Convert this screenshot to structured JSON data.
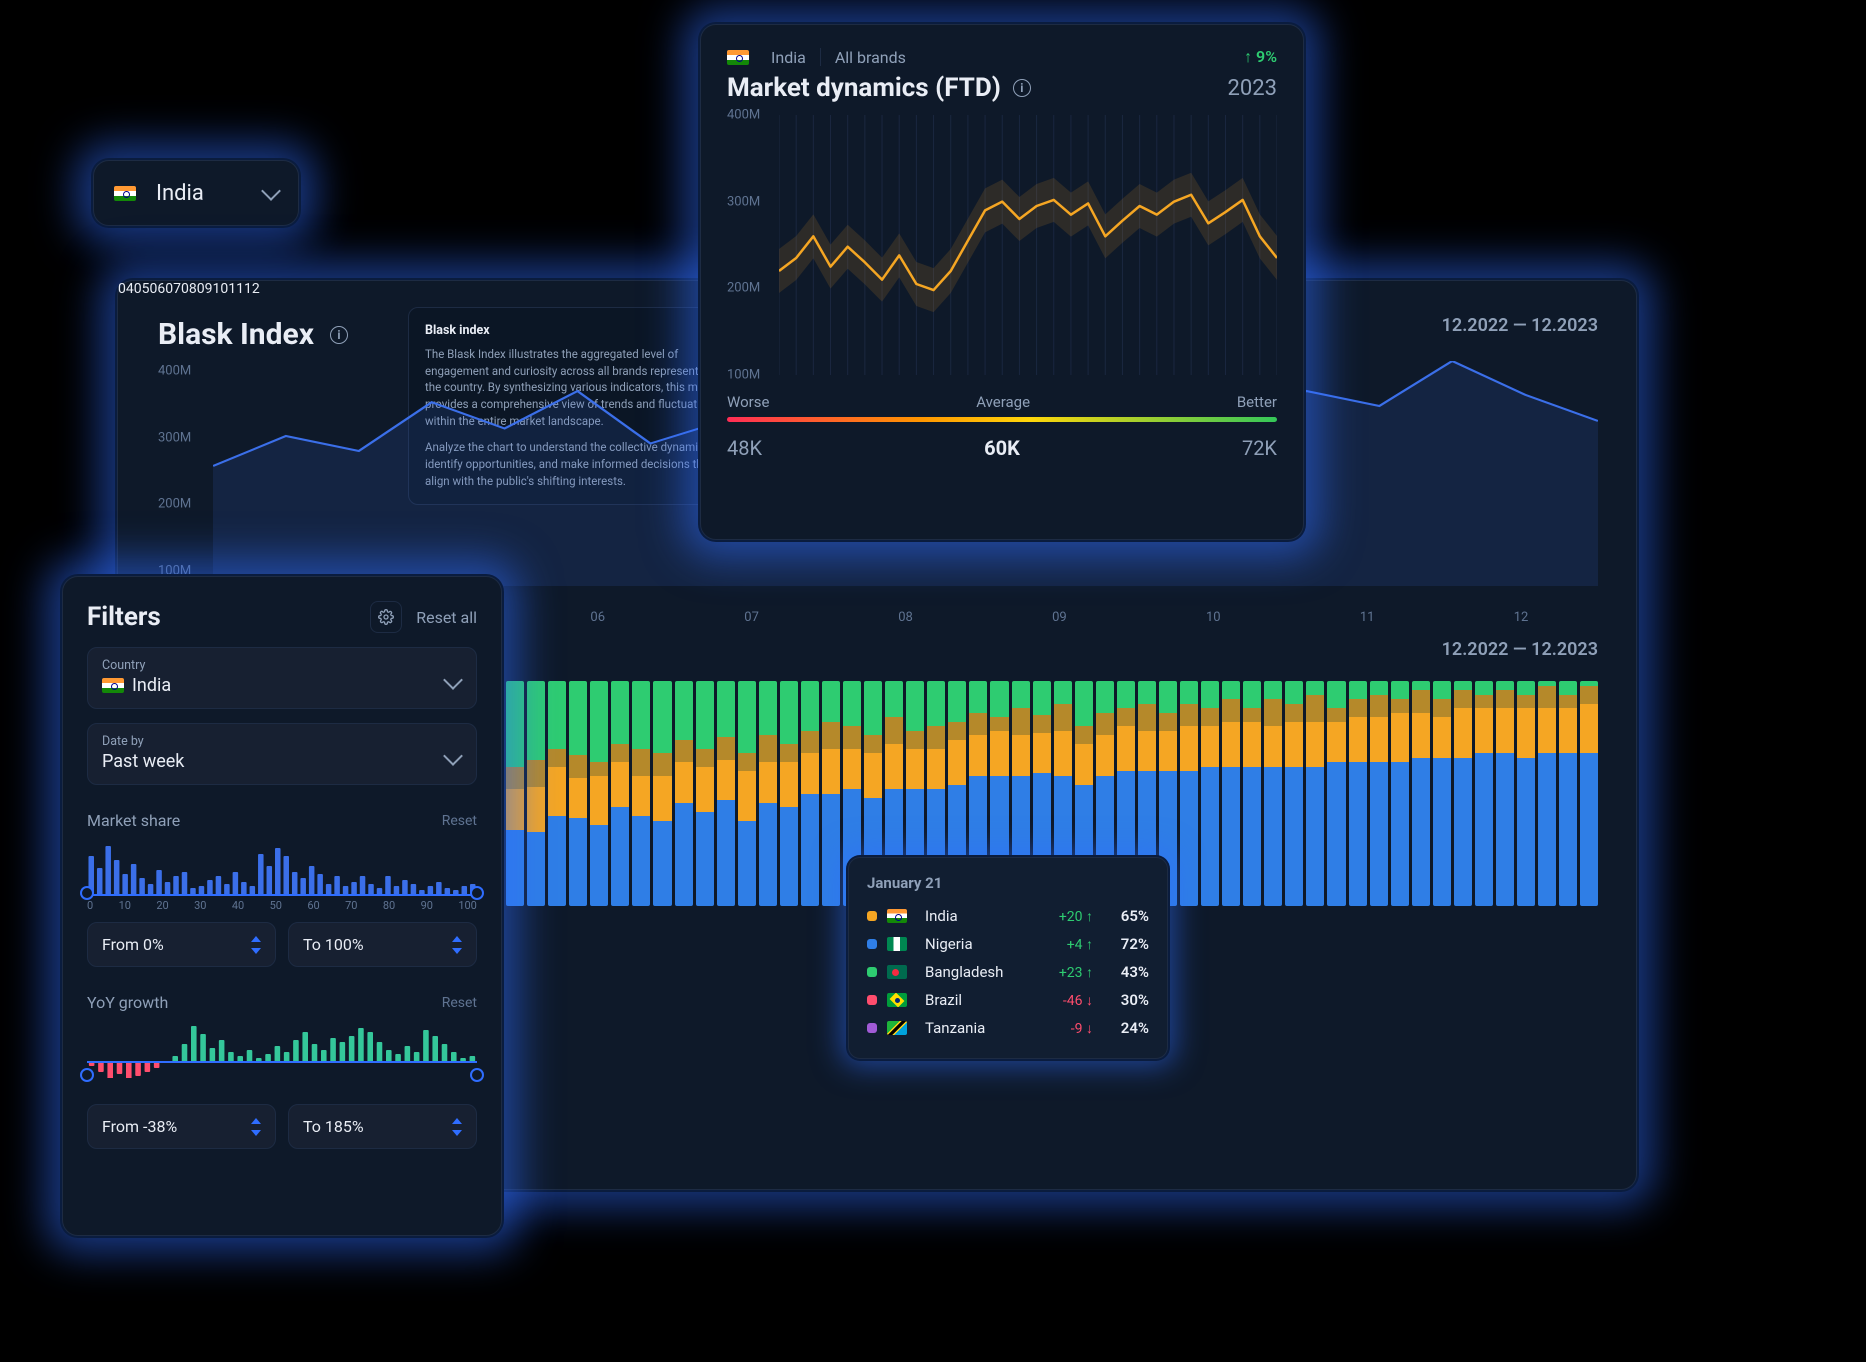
{
  "colors": {
    "panel": "#0e1929",
    "border": "#1d2b43",
    "text": "#e9edf5",
    "text_dim": "#8fa0b8",
    "blue_line": "#3b6fe9",
    "orange_line": "#f5a623",
    "glow": "#2f6dff",
    "stack_colors": {
      "india": "#f5a623",
      "nigeria": "#2f7ee6",
      "bangladesh": "#2ecc71",
      "brazil": "#ff4d6d",
      "tanzania": "#a15bd6",
      "other": "#b5892a"
    }
  },
  "country_pill": {
    "country": "India",
    "flag": "india"
  },
  "market_dynamics": {
    "breadcrumb": {
      "country": "India",
      "flag": "india",
      "scope": "All brands"
    },
    "growth_pct": "9%",
    "title": "Market dynamics (FTD)",
    "year": "2023",
    "chart": {
      "type": "line",
      "ylim": [
        100,
        400
      ],
      "ytick_step": 100,
      "ytick_suffix": "M",
      "yticks": [
        "400M",
        "300M",
        "200M",
        "100M"
      ],
      "line_color": "#f5a623",
      "band_color": "#f5a62322",
      "values": [
        220,
        235,
        260,
        225,
        248,
        230,
        210,
        238,
        205,
        198,
        220,
        255,
        290,
        300,
        280,
        295,
        302,
        285,
        298,
        260,
        278,
        295,
        285,
        300,
        308,
        275,
        288,
        302,
        260,
        235
      ]
    },
    "gauge": {
      "labels": {
        "worse": "Worse",
        "average": "Average",
        "better": "Better"
      },
      "values": {
        "low": "48K",
        "mid": "60K",
        "high": "72K"
      }
    }
  },
  "blask": {
    "title": "Blask Index",
    "date_range_1": "12.2022 — 12.2023",
    "date_range_2": "12.2022 — 12.2023",
    "tooltip": {
      "heading": "Blask index",
      "p1": "The Blask Index illustrates the aggregated level of engagement and curiosity across all brands represented in the country. By synthesizing various indicators, this metric provides a comprehensive view of trends and fluctuations within the entire market landscape.",
      "p2": "Analyze the chart to understand the collective dynamics, identify opportunities, and make informed decisions that align with the public's shifting interests."
    },
    "line_chart": {
      "type": "area",
      "ylim": [
        100,
        400
      ],
      "yticks": [
        "400M",
        "300M",
        "200M",
        "100M"
      ],
      "xticks": [
        "04",
        "05",
        "06",
        "07",
        "08",
        "09",
        "10",
        "11",
        "12"
      ],
      "line_color": "#3b6fe9",
      "fill_color": "#3b6fe922",
      "values": [
        260,
        300,
        280,
        345,
        310,
        360,
        290,
        320,
        270,
        300,
        260,
        295,
        245,
        300,
        310,
        360,
        340,
        400,
        355,
        320
      ]
    },
    "stack_chart": {
      "type": "stacked-bar",
      "xticks": [
        "04",
        "05",
        "06",
        "07",
        "08",
        "09",
        "10",
        "11",
        "12"
      ],
      "series_order": [
        "bangladesh",
        "other",
        "india",
        "nigeria"
      ],
      "bars": [
        [
          38,
          10,
          18,
          34
        ],
        [
          35,
          12,
          20,
          33
        ],
        [
          30,
          8,
          22,
          40
        ],
        [
          33,
          10,
          18,
          39
        ],
        [
          36,
          6,
          22,
          36
        ],
        [
          28,
          8,
          20,
          44
        ],
        [
          30,
          12,
          18,
          40
        ],
        [
          32,
          10,
          20,
          38
        ],
        [
          26,
          10,
          18,
          46
        ],
        [
          30,
          8,
          20,
          42
        ],
        [
          25,
          10,
          18,
          47
        ],
        [
          32,
          8,
          22,
          38
        ],
        [
          24,
          12,
          18,
          46
        ],
        [
          28,
          8,
          20,
          44
        ],
        [
          22,
          10,
          18,
          50
        ],
        [
          18,
          12,
          20,
          50
        ],
        [
          20,
          10,
          18,
          52
        ],
        [
          24,
          8,
          20,
          48
        ],
        [
          16,
          12,
          20,
          52
        ],
        [
          22,
          8,
          18,
          52
        ],
        [
          20,
          10,
          18,
          52
        ],
        [
          18,
          8,
          20,
          54
        ],
        [
          14,
          10,
          18,
          58
        ],
        [
          16,
          6,
          20,
          58
        ],
        [
          12,
          12,
          18,
          58
        ],
        [
          15,
          8,
          18,
          59
        ],
        [
          10,
          12,
          20,
          58
        ],
        [
          20,
          8,
          18,
          54
        ],
        [
          14,
          10,
          18,
          58
        ],
        [
          12,
          8,
          20,
          60
        ],
        [
          10,
          12,
          18,
          60
        ],
        [
          14,
          8,
          18,
          60
        ],
        [
          10,
          10,
          20,
          60
        ],
        [
          12,
          8,
          18,
          62
        ],
        [
          8,
          10,
          20,
          62
        ],
        [
          12,
          6,
          20,
          62
        ],
        [
          8,
          12,
          18,
          62
        ],
        [
          10,
          8,
          20,
          62
        ],
        [
          6,
          12,
          20,
          62
        ],
        [
          12,
          6,
          18,
          64
        ],
        [
          8,
          8,
          20,
          64
        ],
        [
          6,
          10,
          20,
          64
        ],
        [
          8,
          6,
          22,
          64
        ],
        [
          4,
          10,
          20,
          66
        ],
        [
          8,
          8,
          18,
          66
        ],
        [
          4,
          8,
          22,
          66
        ],
        [
          6,
          6,
          20,
          68
        ],
        [
          4,
          8,
          20,
          68
        ],
        [
          6,
          6,
          22,
          66
        ],
        [
          2,
          10,
          20,
          68
        ],
        [
          6,
          6,
          20,
          68
        ],
        [
          2,
          8,
          22,
          68
        ]
      ]
    },
    "stack_tooltip": {
      "date": "January 21",
      "rows": [
        {
          "color": "#f5a623",
          "flag": "india",
          "name": "India",
          "delta": "+20",
          "dir": "up",
          "pct": "65%"
        },
        {
          "color": "#2f7ee6",
          "flag": "nigeria",
          "name": "Nigeria",
          "delta": "+4",
          "dir": "up",
          "pct": "72%"
        },
        {
          "color": "#2ecc71",
          "flag": "bangladesh",
          "name": "Bangladesh",
          "delta": "+23",
          "dir": "up",
          "pct": "43%"
        },
        {
          "color": "#ff4d6d",
          "flag": "brazil",
          "name": "Brazil",
          "delta": "-46",
          "dir": "down",
          "pct": "30%"
        },
        {
          "color": "#a15bd6",
          "flag": "tanzania",
          "name": "Tanzania",
          "delta": "-9",
          "dir": "down",
          "pct": "24%"
        }
      ]
    }
  },
  "filters": {
    "title": "Filters",
    "reset_all": "Reset all",
    "country": {
      "label": "Country",
      "value": "India",
      "flag": "india"
    },
    "date_by": {
      "label": "Date by",
      "value": "Past week"
    },
    "market_share": {
      "title": "Market share",
      "reset": "Reset",
      "axis": [
        "0",
        "10",
        "20",
        "30",
        "40",
        "50",
        "60",
        "70",
        "80",
        "90",
        "100"
      ],
      "bars": [
        40,
        28,
        50,
        36,
        22,
        32,
        18,
        12,
        26,
        14,
        20,
        24,
        8,
        10,
        16,
        20,
        12,
        24,
        14,
        10,
        42,
        30,
        48,
        40,
        24,
        18,
        30,
        22,
        12,
        20,
        10,
        14,
        20,
        12,
        8,
        20,
        10,
        16,
        12,
        6,
        10,
        14,
        8,
        6,
        10,
        12
      ],
      "bar_color": "#3b6fe9",
      "from": "From 0%",
      "to": "To 100%"
    },
    "yoy": {
      "title": "YoY growth",
      "reset": "Reset",
      "bars": [
        -4,
        -10,
        -18,
        -12,
        -20,
        -14,
        -10,
        -6,
        0,
        6,
        18,
        36,
        28,
        14,
        22,
        10,
        6,
        12,
        4,
        8,
        16,
        10,
        22,
        30,
        18,
        12,
        24,
        20,
        26,
        34,
        30,
        20,
        12,
        8,
        16,
        10,
        32,
        26,
        18,
        10,
        4,
        6
      ],
      "pos_color": "#34c79a",
      "neg_color": "#ff4d6d",
      "from": "From -38%",
      "to": "To 185%"
    }
  }
}
